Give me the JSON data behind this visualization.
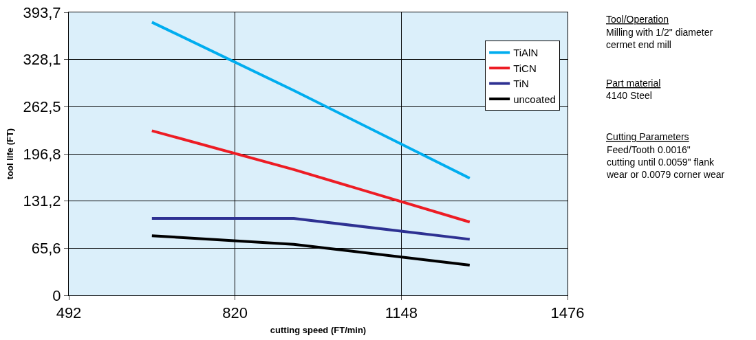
{
  "chart_data": {
    "type": "line",
    "xlabel": "cutting speed (FT/min)",
    "ylabel": "tool life (FT)",
    "x": [
      656,
      936,
      1283
    ],
    "series": [
      {
        "name": "TiAlN",
        "color": "#00adef",
        "values": [
          380,
          285,
          163
        ]
      },
      {
        "name": "TiCN",
        "color": "#ed1c24",
        "values": [
          229,
          175,
          102
        ]
      },
      {
        "name": "TiN",
        "color": "#2e3192",
        "values": [
          107,
          107,
          78
        ]
      },
      {
        "name": "uncoated",
        "color": "#000000",
        "values": [
          83,
          71,
          42
        ]
      }
    ],
    "xlim": [
      492,
      1476
    ],
    "xticks": [
      492,
      820,
      1148,
      1476
    ],
    "ylim": [
      0,
      393.7
    ],
    "yticks": [
      0,
      {
        "value": 65.6,
        "label": "65,6"
      },
      {
        "value": 131.2,
        "label": "131,2"
      },
      {
        "value": 196.8,
        "label": "196,8"
      },
      {
        "value": 262.5,
        "label": "262,5"
      },
      {
        "value": 328.1,
        "label": "328,1"
      },
      {
        "value": 393.7,
        "label": "393,7"
      }
    ],
    "grid": true,
    "legend": "top right",
    "marker": "none",
    "line_style": "solid",
    "annotations": [
      "Tool/Operation",
      "Milling with 1/2\" diameter\ncermet end mill",
      "Part material",
      "4140 Steel",
      "Cutting Parameters",
      "Feed/Tooth 0.0016\"\ncutting until 0.0059\" flank\nwear or 0.0079 corner wear"
    ]
  }
}
